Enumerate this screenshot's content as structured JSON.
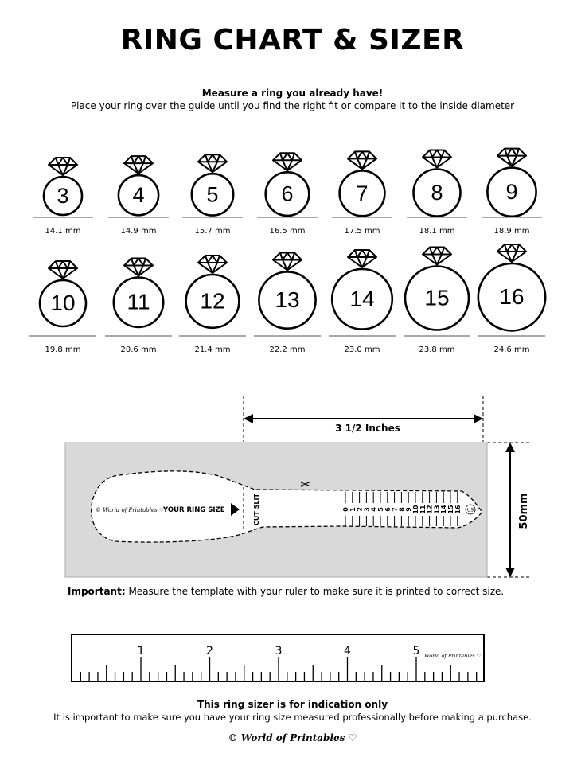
{
  "title": "RING CHART & SIZER",
  "instructions": {
    "heading": "Measure a ring you already have!",
    "text": "Place your ring over the guide until you find the right fit or compare it to the inside diameter"
  },
  "rings": [
    {
      "size": "3",
      "diameter": "14.1 mm"
    },
    {
      "size": "4",
      "diameter": "14.9 mm"
    },
    {
      "size": "5",
      "diameter": "15.7 mm"
    },
    {
      "size": "6",
      "diameter": "16.5 mm"
    },
    {
      "size": "7",
      "diameter": "17.5 mm"
    },
    {
      "size": "8",
      "diameter": "18.1 mm"
    },
    {
      "size": "9",
      "diameter": "18.9 mm"
    },
    {
      "size": "10",
      "diameter": "19.8 mm"
    },
    {
      "size": "11",
      "diameter": "20.6 mm"
    },
    {
      "size": "12",
      "diameter": "21.4 mm"
    },
    {
      "size": "13",
      "diameter": "22.2 mm"
    },
    {
      "size": "14",
      "diameter": "23.0 mm"
    },
    {
      "size": "15",
      "diameter": "23.8 mm"
    },
    {
      "size": "16",
      "diameter": "24.6 mm"
    }
  ],
  "sizer": {
    "width_label": "3 1/2 Inches",
    "height_label": "50mm",
    "brand": "© World of Printables ♡",
    "your_ring_size": "YOUR RING SIZE",
    "cut_slit": "CUT SLIT",
    "scale": [
      "0",
      "1",
      "2",
      "3",
      "4",
      "5",
      "6",
      "7",
      "8",
      "9",
      "10",
      "11",
      "12",
      "13",
      "14",
      "15",
      "16"
    ],
    "unit_badge": "US",
    "background_color": "#d9d9d9"
  },
  "important": {
    "label": "Important:",
    "text": " Measure the template with your ruler to make sure it is printed to correct size."
  },
  "ruler": {
    "numbers": [
      "1",
      "2",
      "3",
      "4",
      "5"
    ],
    "brand": "World of Printables ♡"
  },
  "disclaimer": {
    "heading": "This ring sizer is for indication only",
    "text": "It is important to make sure you have your ring size measured professionally before making a purchase."
  },
  "footer_brand": "© World of Printables ♡"
}
